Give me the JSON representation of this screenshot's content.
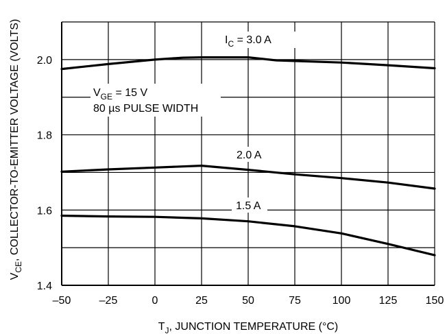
{
  "chart_data": {
    "type": "line",
    "xlabel_main": "T",
    "xlabel_sub": "J",
    "xlabel_rest": ", JUNCTION TEMPERATURE (°C)",
    "ylabel_main": "V",
    "ylabel_sub": "CE",
    "ylabel_rest": ", COLLECTOR-TO-EMITTER VOLTAGE (VOLTS)",
    "xlim": [
      -50,
      150
    ],
    "ylim": [
      1.4,
      2.1
    ],
    "xticks": [
      -50,
      -25,
      0,
      25,
      50,
      75,
      100,
      125,
      150
    ],
    "xtick_labels": [
      "–50",
      "–25",
      "0",
      "25",
      "50",
      "75",
      "100",
      "125",
      "150"
    ],
    "yticks": [
      1.4,
      1.6,
      1.8,
      2.0
    ],
    "ytick_labels": [
      "1.4",
      "1.6",
      "1.8",
      "2.0"
    ],
    "grid": true,
    "series": [
      {
        "name": "3.0 A",
        "x": [
          -50,
          -25,
          0,
          15,
          25,
          50,
          65,
          100,
          125,
          150
        ],
        "y": [
          1.975,
          1.988,
          2.0,
          2.005,
          2.006,
          2.006,
          1.998,
          1.992,
          1.985,
          1.977
        ]
      },
      {
        "name": "2.0 A",
        "x": [
          -50,
          -25,
          0,
          25,
          50,
          75,
          100,
          125,
          150
        ],
        "y": [
          1.702,
          1.708,
          1.713,
          1.718,
          1.707,
          1.695,
          1.685,
          1.673,
          1.657
        ]
      },
      {
        "name": "1.5 A",
        "x": [
          -50,
          -25,
          0,
          25,
          50,
          75,
          100,
          125,
          150
        ],
        "y": [
          1.585,
          1.583,
          1.582,
          1.578,
          1.57,
          1.557,
          1.538,
          1.51,
          1.48
        ]
      }
    ],
    "annotations": {
      "ic_main": "I",
      "ic_sub": "C",
      "ic_rest": " = 3.0 A",
      "a2": "2.0 A",
      "a15": "1.5 A",
      "vge_main": "V",
      "vge_sub": "GE",
      "vge_rest": " = 15 V",
      "pulse": "80 µs PULSE WIDTH"
    }
  }
}
